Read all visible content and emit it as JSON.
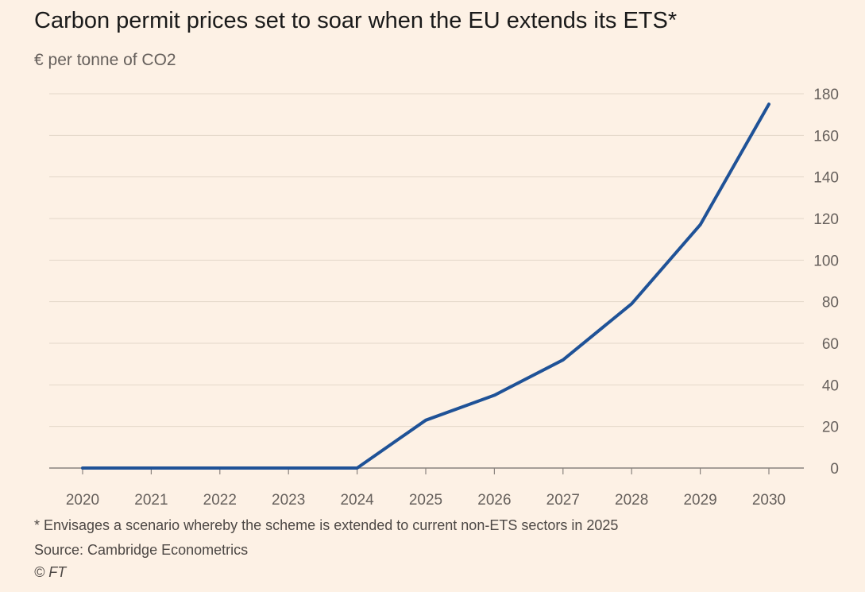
{
  "chart_data": {
    "type": "line",
    "title": "Carbon permit prices set to soar when the EU extends its ETS*",
    "subtitle": "€ per tonne of CO2",
    "x": [
      "2020",
      "2021",
      "2022",
      "2023",
      "2024",
      "2025",
      "2026",
      "2027",
      "2028",
      "2029",
      "2030"
    ],
    "series": [
      {
        "values": [
          0,
          0,
          0,
          0,
          0,
          23,
          35,
          52,
          79,
          117,
          175
        ],
        "color": "#1f5297"
      }
    ],
    "ylim": [
      0,
      180
    ],
    "yticks": [
      0,
      20,
      40,
      60,
      80,
      100,
      120,
      140,
      160,
      180
    ],
    "y_axis_position": "right",
    "grid": true,
    "legend": "none"
  },
  "footnote": "* Envisages a scenario whereby the scheme is extended to current non-ETS sectors in 2025",
  "source": "Source: Cambridge Econometrics",
  "copyright": "© FT",
  "colors": {
    "background": "#fdf1e5",
    "line": "#1f5297",
    "grid": "#e3d6c9",
    "axis": "#66605c"
  }
}
